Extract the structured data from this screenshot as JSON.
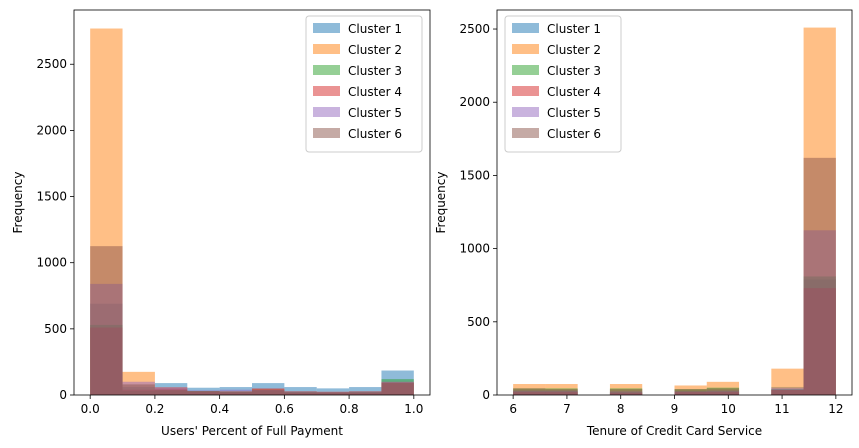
{
  "chart_data": [
    {
      "type": "bar",
      "subtype": "overlaid-histogram",
      "xlabel": "Users' Percent of Full Payment",
      "ylabel": "Frequency",
      "xlim": [
        -0.05,
        1.05
      ],
      "ylim": [
        0,
        2910
      ],
      "xticks": [
        0.0,
        0.2,
        0.4,
        0.6,
        0.8,
        1.0
      ],
      "xtick_labels": [
        "0.0",
        "0.2",
        "0.4",
        "0.6",
        "0.8",
        "1.0"
      ],
      "yticks": [
        0,
        500,
        1000,
        1500,
        2000,
        2500
      ],
      "ytick_labels": [
        "0",
        "500",
        "1000",
        "1500",
        "2000",
        "2500"
      ],
      "bin_edges": [
        0.0,
        0.1,
        0.2,
        0.3,
        0.4,
        0.5,
        0.6,
        0.7,
        0.8,
        0.9,
        1.0
      ],
      "legend_position": "upper-right",
      "grid": false,
      "series": [
        {
          "name": "Cluster 1",
          "color": "#1f77b4",
          "values": [
            690,
            60,
            90,
            55,
            60,
            90,
            60,
            50,
            60,
            185
          ]
        },
        {
          "name": "Cluster 2",
          "color": "#ff7f0e",
          "values": [
            2770,
            175,
            60,
            30,
            30,
            45,
            30,
            25,
            30,
            100
          ]
        },
        {
          "name": "Cluster 3",
          "color": "#2ca02c",
          "values": [
            530,
            30,
            35,
            30,
            25,
            35,
            25,
            20,
            25,
            120
          ]
        },
        {
          "name": "Cluster 4",
          "color": "#d62728",
          "values": [
            510,
            40,
            50,
            25,
            20,
            50,
            20,
            20,
            20,
            95
          ]
        },
        {
          "name": "Cluster 5",
          "color": "#9467bd",
          "values": [
            840,
            100,
            60,
            35,
            40,
            40,
            30,
            25,
            30,
            100
          ]
        },
        {
          "name": "Cluster 6",
          "color": "#8c564b",
          "values": [
            1125,
            80,
            40,
            30,
            25,
            40,
            20,
            20,
            20,
            90
          ]
        }
      ]
    },
    {
      "type": "bar",
      "subtype": "overlaid-histogram",
      "xlabel": "Tenure of Credit Card Service",
      "ylabel": "Frequency",
      "xlim": [
        5.7,
        12.3
      ],
      "ylim": [
        0,
        2630
      ],
      "xticks": [
        6,
        7,
        8,
        9,
        10,
        11,
        12
      ],
      "xtick_labels": [
        "6",
        "7",
        "8",
        "9",
        "10",
        "11",
        "12"
      ],
      "yticks": [
        0,
        500,
        1000,
        1500,
        2000,
        2500
      ],
      "ytick_labels": [
        "0",
        "500",
        "1000",
        "1500",
        "2000",
        "2500"
      ],
      "bin_edges": [
        6.0,
        6.6,
        7.2,
        7.8,
        8.4,
        9.0,
        9.6,
        10.2,
        10.8,
        11.4,
        12.0
      ],
      "legend_position": "upper-left",
      "grid": false,
      "series": [
        {
          "name": "Cluster 1",
          "color": "#1f77b4",
          "values": [
            30,
            30,
            0,
            20,
            0,
            30,
            30,
            0,
            55,
            790
          ]
        },
        {
          "name": "Cluster 2",
          "color": "#ff7f0e",
          "values": [
            75,
            75,
            0,
            75,
            0,
            65,
            90,
            0,
            180,
            2510
          ]
        },
        {
          "name": "Cluster 3",
          "color": "#2ca02c",
          "values": [
            45,
            45,
            0,
            45,
            0,
            40,
            50,
            0,
            40,
            810
          ]
        },
        {
          "name": "Cluster 4",
          "color": "#d62728",
          "values": [
            20,
            20,
            0,
            15,
            0,
            20,
            20,
            0,
            35,
            730
          ]
        },
        {
          "name": "Cluster 5",
          "color": "#9467bd",
          "values": [
            30,
            30,
            0,
            25,
            0,
            25,
            30,
            0,
            45,
            1125
          ]
        },
        {
          "name": "Cluster 6",
          "color": "#8c564b",
          "values": [
            45,
            40,
            0,
            40,
            0,
            40,
            45,
            0,
            35,
            1620
          ]
        }
      ]
    }
  ]
}
